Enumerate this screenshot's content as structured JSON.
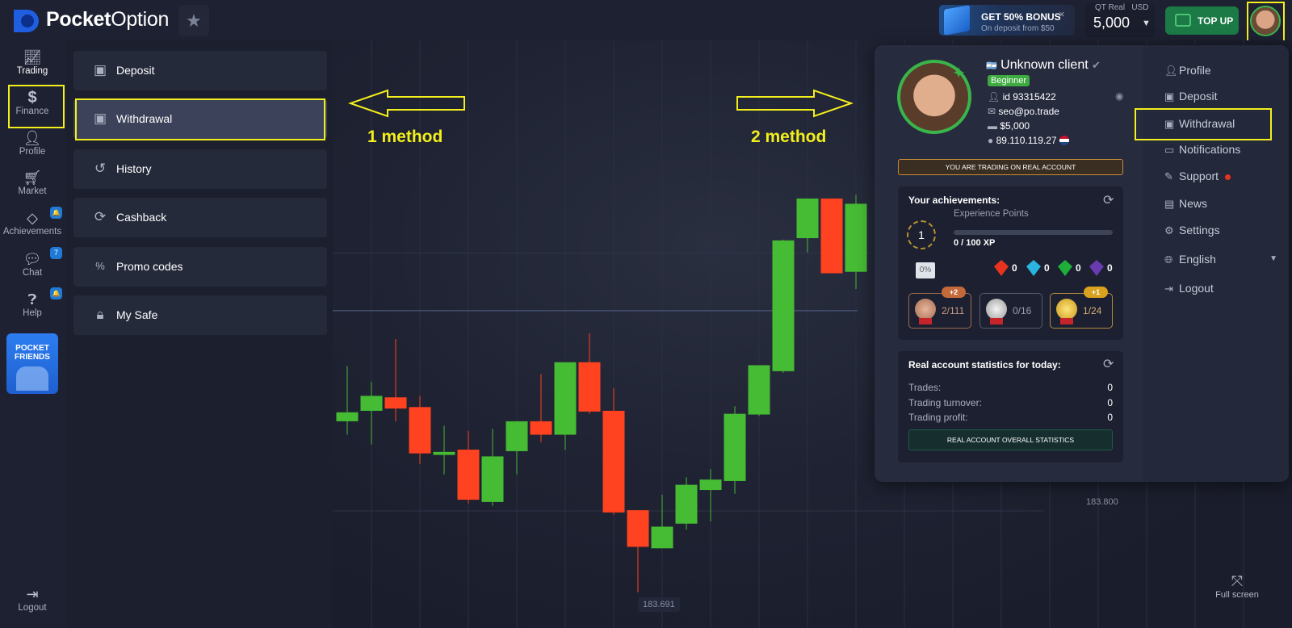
{
  "header": {
    "logo_bold": "Pocket",
    "logo_regular": "Option",
    "favorites_icon": "star-icon",
    "bonus": {
      "title": "GET 50% BONUS",
      "subtitle": "On deposit from $50",
      "close": "×"
    },
    "balance": {
      "account_label": "QT Real",
      "currency": "USD",
      "amount": "5,000"
    },
    "top_up_label": "TOP UP"
  },
  "left_nav": {
    "items": [
      {
        "label": "Trading",
        "icon": "chart-icon"
      },
      {
        "label": "Finance",
        "icon": "dollar-icon"
      },
      {
        "label": "Profile",
        "icon": "user-icon"
      },
      {
        "label": "Market",
        "icon": "cart-icon"
      },
      {
        "label": "Achievements",
        "icon": "diamond-icon",
        "badge": "🔔"
      },
      {
        "label": "Chat",
        "icon": "chat-icon",
        "badge": "7"
      },
      {
        "label": "Help",
        "icon": "help-icon",
        "badge": "🔔"
      }
    ],
    "promo": {
      "line1": "POCKET",
      "line2": "FRIENDS"
    },
    "logout": "Logout"
  },
  "finance_menu": {
    "items": [
      {
        "label": "Deposit",
        "icon": "atm-icon"
      },
      {
        "label": "Withdrawal",
        "icon": "atm-icon",
        "selected": true
      },
      {
        "label": "History",
        "icon": "history-icon"
      },
      {
        "label": "Cashback",
        "icon": "cashback-icon"
      },
      {
        "label": "Promo codes",
        "icon": "promo-icon"
      },
      {
        "label": "My Safe",
        "icon": "safe-icon"
      }
    ]
  },
  "annotations": {
    "method1": "1 method",
    "method2": "2 method",
    "color": "#f3ef1c"
  },
  "chart_data": {
    "type": "candlestick",
    "price_labels": {
      "level": "183.800",
      "low": "183.691"
    },
    "current_price_line": 184.068,
    "colors": {
      "up": "#46bb34",
      "down": "#ff4220"
    },
    "candles": [
      {
        "o": 183.92,
        "h": 183.994,
        "l": 183.902,
        "c": 183.932
      },
      {
        "o": 183.934,
        "h": 183.973,
        "l": 183.889,
        "c": 183.954
      },
      {
        "o": 183.952,
        "h": 184.03,
        "l": 183.92,
        "c": 183.937
      },
      {
        "o": 183.939,
        "h": 183.954,
        "l": 183.863,
        "c": 183.877
      },
      {
        "o": 183.875,
        "h": 183.914,
        "l": 183.849,
        "c": 183.879
      },
      {
        "o": 183.882,
        "h": 183.907,
        "l": 183.81,
        "c": 183.815
      },
      {
        "o": 183.812,
        "h": 183.91,
        "l": 183.807,
        "c": 183.873
      },
      {
        "o": 183.88,
        "h": 183.92,
        "l": 183.849,
        "c": 183.92
      },
      {
        "o": 183.92,
        "h": 183.983,
        "l": 183.892,
        "c": 183.902
      },
      {
        "o": 183.902,
        "h": 183.999,
        "l": 183.882,
        "c": 183.999
      },
      {
        "o": 183.999,
        "h": 184.038,
        "l": 183.93,
        "c": 183.933
      },
      {
        "o": 183.934,
        "h": 183.964,
        "l": 183.795,
        "c": 183.798
      },
      {
        "o": 183.801,
        "h": 183.801,
        "l": 183.691,
        "c": 183.752
      },
      {
        "o": 183.75,
        "h": 183.822,
        "l": 183.75,
        "c": 183.779
      },
      {
        "o": 183.783,
        "h": 183.845,
        "l": 183.775,
        "c": 183.835
      },
      {
        "o": 183.828,
        "h": 183.856,
        "l": 183.786,
        "c": 183.842
      },
      {
        "o": 183.84,
        "h": 183.94,
        "l": 183.823,
        "c": 183.93
      },
      {
        "o": 183.929,
        "h": 183.995,
        "l": 183.927,
        "c": 183.995
      },
      {
        "o": 183.987,
        "h": 184.163,
        "l": 183.985,
        "c": 184.162
      },
      {
        "o": 184.165,
        "h": 184.218,
        "l": 184.146,
        "c": 184.218
      },
      {
        "o": 184.218,
        "h": 184.218,
        "l": 184.118,
        "c": 184.118
      },
      {
        "o": 184.12,
        "h": 184.223,
        "l": 184.097,
        "c": 184.211
      }
    ]
  },
  "fullscreen_label": "Full screen",
  "profile_panel": {
    "name": "Unknown client",
    "level": "Beginner",
    "id": "id 93315422",
    "email": "seo@po.trade",
    "balance": "$5,000",
    "ip": "89.110.119.27",
    "real_account_banner": "YOU ARE TRADING ON REAL ACCOUNT",
    "achievements": {
      "title": "Your achievements:",
      "rank": "1",
      "xp_label": "Experience Points",
      "xp_text": "0 / 100 XP",
      "xp_progress": 0,
      "cashback_icon_text": "0%",
      "gems": [
        {
          "name": "red-gem",
          "count": "0",
          "color": "#e8331f"
        },
        {
          "name": "blue-gem",
          "count": "0",
          "color": "#2ab4e0"
        },
        {
          "name": "green-gem",
          "count": "0",
          "color": "#1fae3a"
        },
        {
          "name": "purple-gem",
          "count": "0",
          "color": "#6a3bb0"
        }
      ],
      "medals": [
        {
          "name": "bronze",
          "value": "2/111",
          "plus": "+2"
        },
        {
          "name": "silver",
          "value": "0/16",
          "plus": ""
        },
        {
          "name": "gold",
          "value": "1/24",
          "plus": "+1"
        }
      ]
    },
    "stats": {
      "title": "Real account statistics for today:",
      "rows": [
        {
          "label": "Trades:",
          "value": "0"
        },
        {
          "label": "Trading turnover:",
          "value": "0"
        },
        {
          "label": "Trading profit:",
          "value": "0"
        }
      ],
      "button": "REAL ACCOUNT OVERALL STATISTICS"
    },
    "menu": [
      {
        "label": "Profile",
        "icon": "user-icon"
      },
      {
        "label": "Deposit",
        "icon": "atm-icon"
      },
      {
        "label": "Withdrawal",
        "icon": "atm-icon"
      },
      {
        "label": "Notifications",
        "icon": "inbox-icon"
      },
      {
        "label": "Support",
        "icon": "support-icon"
      },
      {
        "label": "News",
        "icon": "news-icon"
      },
      {
        "label": "Settings",
        "icon": "gear-icon"
      },
      {
        "label": "English",
        "icon": "globe-icon"
      },
      {
        "label": "Logout",
        "icon": "logout-icon"
      }
    ]
  }
}
